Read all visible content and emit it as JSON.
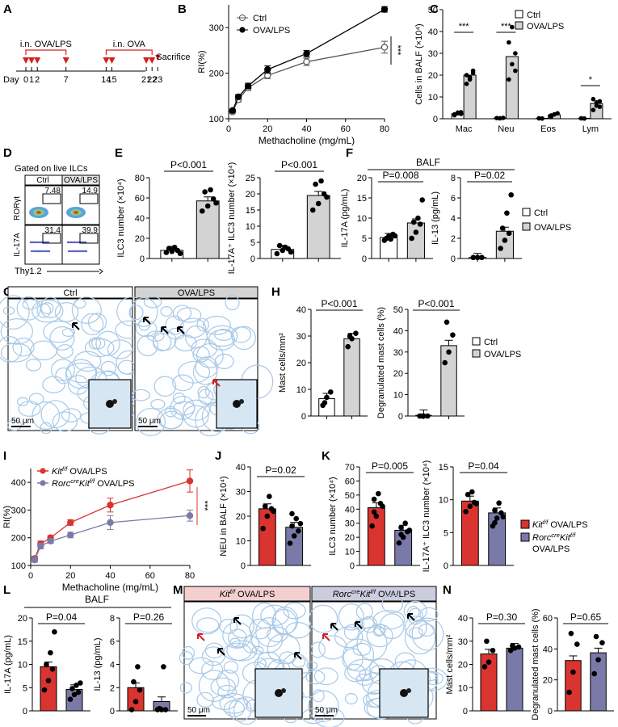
{
  "colors": {
    "ctrl_bar": "#ffffff",
    "ova_bar": "#d3d3d3",
    "red": "#d9342f",
    "purple": "#7a7aa8",
    "arrow_red": "#d62020",
    "label_red": "#c8393a",
    "axis": "#000000",
    "tissue_bg": "#e8f1fa"
  },
  "panels": {
    "A": {
      "letter": "A",
      "label_ovalps": "i.n. OVA/LPS",
      "label_ova": "i.n. OVA",
      "sacrifice": "Sacrifice",
      "day_label": "Day",
      "days": [
        "0",
        "1",
        "2",
        "7",
        "14",
        "15",
        "21",
        "22",
        "23"
      ],
      "arrow_days": [
        0,
        1,
        2,
        7,
        14,
        15,
        21,
        22
      ]
    },
    "B": {
      "letter": "B",
      "legend": [
        "Ctrl",
        "OVA/LPS"
      ],
      "sig": "***"
    },
    "C": {
      "letter": "C",
      "legend": [
        "Ctrl",
        "OVA/LPS"
      ],
      "sig": [
        "***",
        "***",
        "*"
      ]
    },
    "D": {
      "letter": "D",
      "title": "Gated on live ILCs",
      "groups": [
        "Ctrl",
        "OVA/LPS"
      ],
      "row_labels": [
        "RORγt",
        "IL-17A"
      ],
      "xaxis": "Thy1.2",
      "values": [
        "7.48",
        "14.9",
        "31.4",
        "39.9"
      ]
    },
    "E": {
      "letter": "E",
      "p1": "P<0.001",
      "p2": "P<0.001"
    },
    "F": {
      "letter": "F",
      "header": "BALF",
      "p1": "P=0.008",
      "p2": "P=0.02",
      "legend": [
        "Ctrl",
        "OVA/LPS"
      ]
    },
    "G": {
      "letter": "G",
      "headers": [
        "Ctrl",
        "OVA/LPS"
      ],
      "scale": [
        "50 μm",
        "50 μm"
      ]
    },
    "H": {
      "letter": "H",
      "p1": "P<0.001",
      "p2": "P<0.001",
      "legend": [
        "Ctrl",
        "OVA/LPS"
      ]
    },
    "I": {
      "letter": "I",
      "legend_italic": [
        "Kit",
        "Rorc"
      ],
      "legend1_sup": "f/f",
      "legend1_rest": " OVA/LPS",
      "legend2_sup1": "cre",
      "legend2_mid": "Kit",
      "legend2_sup2": "f/f",
      "legend2_rest": " OVA/LPS",
      "sig": "***"
    },
    "J": {
      "letter": "J",
      "p": "P=0.02"
    },
    "K": {
      "letter": "K",
      "p1": "P=0.005",
      "p2": "P=0.04",
      "legend1": "Kit",
      "legend1_sup": "f/f",
      "legend1_rest": " OVA/LPS",
      "legend2a": "Rorc",
      "legend2_sup1": "cre",
      "legend2b": "Kit",
      "legend2_sup2": "f/f",
      "legend2_line2": "OVA/LPS"
    },
    "L": {
      "letter": "L",
      "header": "BALF",
      "p1": "P=0.04",
      "p2": "P=0.26"
    },
    "M": {
      "letter": "M",
      "header1_a": "Kit",
      "header1_sup": "f/f",
      "header1_b": " OVA/LPS",
      "header2_a": "Rorc",
      "header2_sup1": "cre",
      "header2_b": "Kit",
      "header2_sup2": "f/f",
      "header2_c": " OVA/LPS",
      "scale": [
        "50 μm",
        "50 μm"
      ]
    },
    "N": {
      "letter": "N",
      "p1": "P=0.30",
      "p2": "P=0.65"
    }
  },
  "chart_data": [
    {
      "id": "B",
      "type": "line",
      "xlabel": "Methacholine (mg/mL)",
      "ylabel": "RI(%)",
      "xlim": [
        0,
        80
      ],
      "ylim": [
        100,
        350
      ],
      "xticks": [
        0,
        20,
        40,
        60,
        80
      ],
      "yticks": [
        100,
        200,
        300
      ],
      "x": [
        0,
        3.125,
        6.25,
        12.5,
        25,
        50,
        100
      ],
      "series": [
        {
          "name": "Ctrl",
          "x": [
            2,
            5,
            10,
            20,
            40,
            80
          ],
          "values": [
            115,
            142,
            168,
            195,
            225,
            257
          ],
          "err": [
            3,
            5,
            6,
            7,
            8,
            13
          ]
        },
        {
          "name": "OVA/LPS",
          "x": [
            2,
            5,
            10,
            20,
            40,
            80
          ],
          "values": [
            118,
            148,
            172,
            208,
            243,
            340
          ],
          "err": [
            3,
            5,
            6,
            8,
            7,
            6
          ]
        }
      ]
    },
    {
      "id": "C",
      "type": "bar",
      "ylabel": "Cells in BALF (×10⁴)",
      "ylim": [
        0,
        50
      ],
      "yticks": [
        0,
        10,
        20,
        30,
        40,
        50
      ],
      "categories": [
        "Mac",
        "Neu",
        "Eos",
        "Lym"
      ],
      "series": [
        {
          "name": "Ctrl",
          "values": [
            2.3,
            0.3,
            0.2,
            0.2
          ]
        },
        {
          "name": "OVA/LPS",
          "values": [
            20,
            28.5,
            1.8,
            7
          ]
        }
      ]
    },
    {
      "id": "E1",
      "type": "bar",
      "ylabel": "ILC3 number (×10⁴)",
      "ylim": [
        0,
        80
      ],
      "yticks": [
        0,
        20,
        40,
        60,
        80
      ],
      "categories": [
        "Ctrl",
        "OVA/LPS"
      ],
      "values": [
        8,
        57
      ]
    },
    {
      "id": "E2",
      "type": "bar",
      "ylabel": "IL-17A⁺ ILC3 number (×10⁴)",
      "ylim": [
        0,
        25
      ],
      "yticks": [
        0,
        5,
        10,
        15,
        20,
        25
      ],
      "categories": [
        "Ctrl",
        "OVA/LPS"
      ],
      "values": [
        2.8,
        19.5
      ]
    },
    {
      "id": "F1",
      "type": "bar",
      "ylabel": "IL-17A (pg/mL)",
      "ylim": [
        0,
        20
      ],
      "yticks": [
        0,
        5,
        10,
        15,
        20
      ],
      "categories": [
        "Ctrl",
        "OVA/LPS"
      ],
      "values": [
        5.2,
        8.8
      ]
    },
    {
      "id": "F2",
      "type": "bar",
      "ylabel": "IL-13 (pg/mL)",
      "ylim": [
        0,
        8
      ],
      "yticks": [
        0,
        2,
        4,
        6,
        8
      ],
      "categories": [
        "Ctrl",
        "OVA/LPS"
      ],
      "values": [
        0.1,
        2.7
      ]
    },
    {
      "id": "H1",
      "type": "bar",
      "ylabel": "Mast cells/mm²",
      "ylim": [
        0,
        40
      ],
      "yticks": [
        0,
        10,
        20,
        30,
        40
      ],
      "categories": [
        "Ctrl",
        "OVA/LPS"
      ],
      "values": [
        6.5,
        29
      ]
    },
    {
      "id": "H2",
      "type": "bar",
      "ylabel": "Degranulated mast cells (%)",
      "ylim": [
        0,
        50
      ],
      "yticks": [
        0,
        10,
        20,
        30,
        40,
        50
      ],
      "categories": [
        "Ctrl",
        "OVA/LPS"
      ],
      "values": [
        0.3,
        33
      ]
    },
    {
      "id": "I",
      "type": "line",
      "xlabel": "Methacholine (mg/mL)",
      "ylabel": "RI(%)",
      "xlim": [
        0,
        80
      ],
      "ylim": [
        100,
        450
      ],
      "xticks": [
        0,
        20,
        40,
        60,
        80
      ],
      "yticks": [
        100,
        200,
        300,
        400
      ],
      "series": [
        {
          "name": "Kitf/f OVA/LPS",
          "x": [
            2,
            5,
            10,
            20,
            40,
            80
          ],
          "values": [
            125,
            178,
            200,
            255,
            318,
            405
          ],
          "err": [
            8,
            10,
            8,
            10,
            25,
            40
          ]
        },
        {
          "name": "RorccreKitf/f OVA/LPS",
          "x": [
            2,
            5,
            10,
            20,
            40,
            80
          ],
          "values": [
            120,
            170,
            188,
            210,
            255,
            280
          ],
          "err": [
            8,
            10,
            8,
            10,
            25,
            20
          ]
        }
      ]
    },
    {
      "id": "J",
      "type": "bar",
      "ylabel": "NEU in BALF (×10⁴)",
      "ylim": [
        0,
        40
      ],
      "yticks": [
        0,
        10,
        20,
        30,
        40
      ],
      "categories": [
        "Kitf/f",
        "RorccreKitf/f"
      ],
      "values": [
        23,
        15.5
      ]
    },
    {
      "id": "K1",
      "type": "bar",
      "ylabel": "ILC3 number (×10⁴)",
      "ylim": [
        0,
        70
      ],
      "yticks": [
        0,
        10,
        20,
        30,
        40,
        50,
        60,
        70
      ],
      "categories": [
        "Kitf/f",
        "RorccreKitf/f"
      ],
      "values": [
        41,
        25
      ]
    },
    {
      "id": "K2",
      "type": "bar",
      "ylabel": "IL-17A⁺ ILC3 number (×10⁴)",
      "ylim": [
        0,
        15
      ],
      "yticks": [
        0,
        5,
        10,
        15
      ],
      "categories": [
        "Kitf/f",
        "RorccreKitf/f"
      ],
      "values": [
        9.8,
        8
      ]
    },
    {
      "id": "L1",
      "type": "bar",
      "ylabel": "IL-17A (pg/mL)",
      "ylim": [
        0,
        20
      ],
      "yticks": [
        0,
        5,
        10,
        15,
        20
      ],
      "categories": [
        "Kitf/f",
        "RorccreKitf/f"
      ],
      "values": [
        9.5,
        4.6
      ]
    },
    {
      "id": "L2",
      "type": "bar",
      "ylabel": "IL-13 (pg/mL)",
      "ylim": [
        0,
        8
      ],
      "yticks": [
        0,
        2,
        4,
        6,
        8
      ],
      "categories": [
        "Kitf/f",
        "RorccreKitf/f"
      ],
      "values": [
        2,
        0.8
      ]
    },
    {
      "id": "N1",
      "type": "bar",
      "ylabel": "Mast cells/mm²",
      "ylim": [
        0,
        40
      ],
      "yticks": [
        0,
        10,
        20,
        30,
        40
      ],
      "categories": [
        "Kitf/f",
        "RorccreKitf/f"
      ],
      "values": [
        24.5,
        27
      ]
    },
    {
      "id": "N2",
      "type": "bar",
      "ylabel": "Degranulated mast cells (%)",
      "ylim": [
        0,
        60
      ],
      "yticks": [
        0,
        20,
        40,
        60
      ],
      "categories": [
        "Kitf/f",
        "RorccreKitf/f"
      ],
      "values": [
        32.5,
        37.5
      ]
    }
  ]
}
